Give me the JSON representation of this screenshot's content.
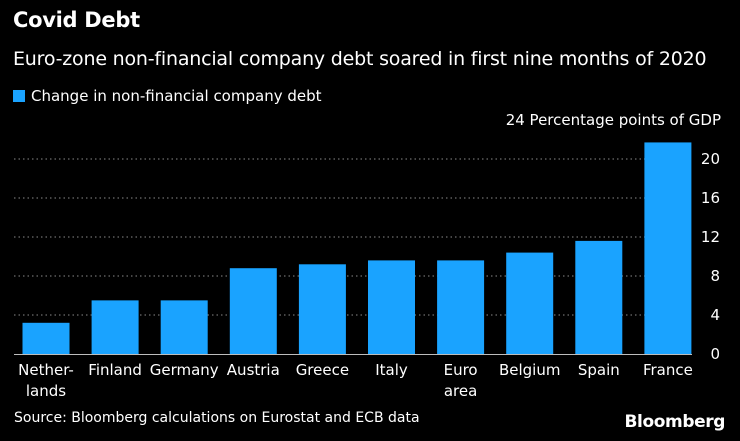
{
  "title": "Covid Debt",
  "subtitle": "Euro-zone non-financial company debt soared in first nine months of 2020",
  "legend": {
    "label": "Change in non-financial company debt",
    "color": "#1aa3ff"
  },
  "unit_label": "24 Percentage points of GDP",
  "source": "Source: Bloomberg calculations on Eurostat and ECB data",
  "brand": "Bloomberg",
  "chart_data": {
    "type": "bar",
    "title": "Covid Debt",
    "subtitle": "Euro-zone non-financial company debt soared in first nine months of 2020",
    "ylabel": "Percentage points of GDP",
    "ylim": [
      0,
      24
    ],
    "yticks": [
      0,
      4,
      8,
      12,
      16,
      20,
      24
    ],
    "ytick_labels": [
      "0",
      "4",
      "8",
      "12",
      "16",
      "20",
      "24"
    ],
    "grid": true,
    "legend_position": "top-left",
    "categories": [
      "Netherlands",
      "Finland",
      "Germany",
      "Austria",
      "Greece",
      "Italy",
      "Euro area",
      "Belgium",
      "Spain",
      "France"
    ],
    "category_labels": [
      [
        "Nether-",
        "lands"
      ],
      [
        "Finland"
      ],
      [
        "Germany"
      ],
      [
        "Austria"
      ],
      [
        "Greece"
      ],
      [
        "Italy"
      ],
      [
        "Euro",
        "area"
      ],
      [
        "Belgium"
      ],
      [
        "Spain"
      ],
      [
        "France"
      ]
    ],
    "series": [
      {
        "name": "Change in non-financial company debt",
        "color": "#1aa3ff",
        "values": [
          3.2,
          5.5,
          5.5,
          8.8,
          9.2,
          9.6,
          9.6,
          10.4,
          11.6,
          21.7
        ]
      }
    ]
  }
}
